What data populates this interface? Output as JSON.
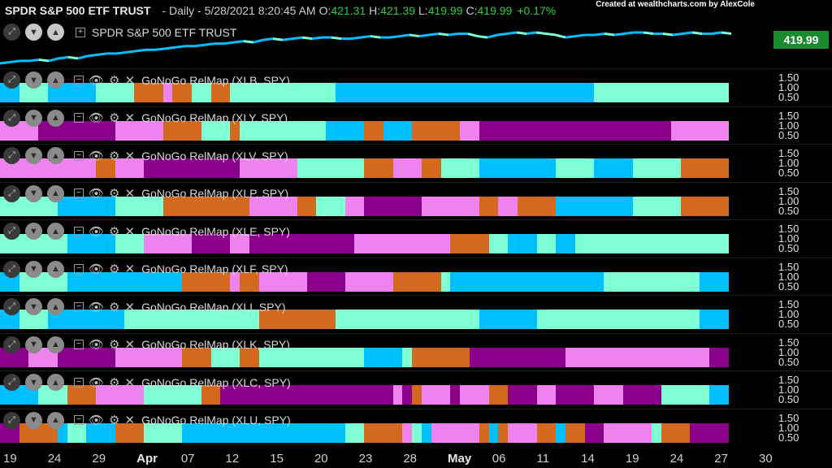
{
  "header": {
    "symbol": "SPDR S&P 500 ETF TRUST",
    "interval": "- Daily - 5/28/2021 8:20:45 AM",
    "o_label": "O:",
    "open": "421.31",
    "h_label": "H:",
    "high": "421.39",
    "l_label": "L:",
    "low": "419.99",
    "c_label": "C:",
    "close": "419.99",
    "change": "+0.17%",
    "credit": "Created at wealthcharts.com by AlexCole"
  },
  "price_pane": {
    "title": "SPDR S&P 500 ETF TRUST",
    "price_box": "419.99"
  },
  "colors": {
    "cyan": "#00bfff",
    "aqua": "#7fffd4",
    "orange": "#d2691e",
    "pink": "#ee82ee",
    "purple": "#8b008b"
  },
  "y_ticks": [
    "1.50",
    "1.00",
    "0.50"
  ],
  "panes": [
    {
      "title": "GoNoGo RelMap (XLB, SPY)",
      "segments": [
        "C",
        "C",
        "A",
        "A",
        "A",
        "C",
        "C",
        "C",
        "C",
        "C",
        "A",
        "A",
        "A",
        "A",
        "O",
        "O",
        "O",
        "P",
        "O",
        "O",
        "A",
        "A",
        "O",
        "O",
        "A",
        "A",
        "A",
        "A",
        "A",
        "A",
        "A",
        "A",
        "A",
        "A",
        "A",
        "C",
        "C",
        "C",
        "C",
        "C",
        "C",
        "C",
        "C",
        "C",
        "C",
        "C",
        "C",
        "C",
        "C",
        "C",
        "C",
        "C",
        "C",
        "C",
        "C",
        "C",
        "C",
        "C",
        "C",
        "C",
        "C",
        "C",
        "A",
        "A",
        "A",
        "A",
        "A",
        "A",
        "A",
        "A",
        "A",
        "A",
        "A",
        "A",
        "A",
        "A"
      ]
    },
    {
      "title": "GoNoGo RelMap (XLY, SPY)",
      "segments": [
        "P",
        "P",
        "P",
        "P",
        "U",
        "U",
        "U",
        "U",
        "U",
        "U",
        "U",
        "U",
        "P",
        "P",
        "P",
        "P",
        "P",
        "O",
        "O",
        "O",
        "O",
        "A",
        "A",
        "A",
        "O",
        "A",
        "A",
        "A",
        "A",
        "A",
        "A",
        "A",
        "A",
        "A",
        "C",
        "C",
        "C",
        "C",
        "O",
        "O",
        "C",
        "C",
        "C",
        "O",
        "O",
        "O",
        "O",
        "O",
        "P",
        "P",
        "U",
        "U",
        "U",
        "U",
        "U",
        "U",
        "U",
        "U",
        "U",
        "U",
        "U",
        "U",
        "U",
        "U",
        "U",
        "U",
        "U",
        "U",
        "U",
        "U",
        "P",
        "P",
        "P",
        "P",
        "P",
        "P"
      ]
    },
    {
      "title": "GoNoGo RelMap (XLV, SPY)",
      "segments": [
        "P",
        "P",
        "P",
        "P",
        "P",
        "P",
        "P",
        "P",
        "P",
        "P",
        "O",
        "O",
        "P",
        "P",
        "P",
        "U",
        "U",
        "U",
        "U",
        "U",
        "U",
        "U",
        "U",
        "U",
        "U",
        "P",
        "P",
        "P",
        "P",
        "P",
        "P",
        "A",
        "A",
        "A",
        "A",
        "A",
        "A",
        "A",
        "O",
        "O",
        "O",
        "P",
        "P",
        "P",
        "O",
        "O",
        "A",
        "A",
        "A",
        "A",
        "C",
        "C",
        "C",
        "C",
        "C",
        "C",
        "C",
        "C",
        "A",
        "A",
        "A",
        "A",
        "C",
        "C",
        "C",
        "C",
        "A",
        "A",
        "A",
        "A",
        "A",
        "O",
        "O",
        "O",
        "O",
        "O"
      ]
    },
    {
      "title": "GoNoGo RelMap (XLP, SPY)",
      "segments": [
        "A",
        "A",
        "A",
        "A",
        "A",
        "A",
        "C",
        "C",
        "C",
        "C",
        "C",
        "C",
        "A",
        "A",
        "A",
        "A",
        "A",
        "O",
        "O",
        "O",
        "O",
        "O",
        "O",
        "O",
        "O",
        "O",
        "P",
        "P",
        "P",
        "P",
        "P",
        "O",
        "O",
        "A",
        "A",
        "A",
        "P",
        "P",
        "U",
        "U",
        "U",
        "U",
        "U",
        "U",
        "P",
        "P",
        "P",
        "P",
        "P",
        "P",
        "O",
        "O",
        "P",
        "P",
        "O",
        "O",
        "O",
        "O",
        "C",
        "C",
        "C",
        "C",
        "C",
        "C",
        "C",
        "C",
        "A",
        "A",
        "A",
        "A",
        "A",
        "O",
        "O",
        "O",
        "O",
        "O"
      ]
    },
    {
      "title": "GoNoGo RelMap (XLE, SPY)",
      "segments": [
        "A",
        "A",
        "A",
        "A",
        "A",
        "A",
        "A",
        "C",
        "C",
        "C",
        "C",
        "C",
        "A",
        "A",
        "A",
        "P",
        "P",
        "P",
        "P",
        "P",
        "U",
        "U",
        "U",
        "U",
        "P",
        "P",
        "U",
        "U",
        "U",
        "U",
        "U",
        "U",
        "U",
        "U",
        "U",
        "U",
        "U",
        "P",
        "P",
        "P",
        "P",
        "P",
        "P",
        "P",
        "P",
        "P",
        "P",
        "O",
        "O",
        "O",
        "O",
        "A",
        "A",
        "C",
        "C",
        "C",
        "A",
        "A",
        "C",
        "C",
        "A",
        "A",
        "A",
        "A",
        "A",
        "A",
        "A",
        "A",
        "A",
        "A",
        "A",
        "A",
        "A",
        "A",
        "A",
        "A"
      ]
    },
    {
      "title": "GoNoGo RelMap (XLF, SPY)",
      "segments": [
        "C",
        "C",
        "A",
        "A",
        "A",
        "A",
        "A",
        "C",
        "C",
        "C",
        "C",
        "C",
        "C",
        "C",
        "C",
        "C",
        "C",
        "C",
        "C",
        "O",
        "O",
        "O",
        "O",
        "O",
        "P",
        "O",
        "O",
        "P",
        "P",
        "P",
        "P",
        "P",
        "U",
        "U",
        "U",
        "U",
        "P",
        "P",
        "P",
        "P",
        "P",
        "O",
        "O",
        "O",
        "O",
        "O",
        "A",
        "C",
        "C",
        "C",
        "C",
        "C",
        "C",
        "C",
        "C",
        "C",
        "C",
        "C",
        "C",
        "C",
        "C",
        "C",
        "C",
        "A",
        "A",
        "A",
        "A",
        "A",
        "A",
        "A",
        "A",
        "A",
        "A",
        "C",
        "C",
        "C"
      ]
    },
    {
      "title": "GoNoGo RelMap (XLI, SPY)",
      "segments": [
        "C",
        "C",
        "A",
        "A",
        "A",
        "C",
        "C",
        "C",
        "C",
        "C",
        "C",
        "C",
        "C",
        "A",
        "A",
        "A",
        "A",
        "A",
        "A",
        "A",
        "A",
        "A",
        "A",
        "A",
        "A",
        "A",
        "A",
        "O",
        "O",
        "O",
        "O",
        "O",
        "O",
        "O",
        "O",
        "A",
        "A",
        "A",
        "A",
        "A",
        "A",
        "A",
        "A",
        "A",
        "A",
        "A",
        "A",
        "A",
        "A",
        "A",
        "C",
        "C",
        "C",
        "C",
        "C",
        "C",
        "A",
        "A",
        "A",
        "A",
        "A",
        "A",
        "A",
        "A",
        "A",
        "A",
        "A",
        "A",
        "A",
        "A",
        "A",
        "A",
        "A",
        "C",
        "C",
        "C"
      ]
    },
    {
      "title": "GoNoGo RelMap (XLK, SPY)",
      "segments": [
        "U",
        "U",
        "U",
        "P",
        "P",
        "P",
        "U",
        "U",
        "U",
        "U",
        "U",
        "U",
        "P",
        "P",
        "P",
        "P",
        "P",
        "P",
        "P",
        "O",
        "O",
        "O",
        "A",
        "A",
        "A",
        "O",
        "O",
        "A",
        "A",
        "A",
        "A",
        "A",
        "A",
        "A",
        "A",
        "A",
        "A",
        "A",
        "C",
        "C",
        "C",
        "C",
        "A",
        "O",
        "O",
        "O",
        "O",
        "O",
        "O",
        "U",
        "U",
        "U",
        "U",
        "U",
        "U",
        "U",
        "U",
        "U",
        "U",
        "P",
        "P",
        "P",
        "P",
        "P",
        "P",
        "P",
        "P",
        "P",
        "P",
        "P",
        "P",
        "P",
        "P",
        "P",
        "U",
        "U"
      ]
    },
    {
      "title": "GoNoGo RelMap (XLC, SPY)",
      "segments": [
        "C",
        "C",
        "C",
        "C",
        "A",
        "A",
        "A",
        "O",
        "O",
        "O",
        "P",
        "P",
        "P",
        "P",
        "P",
        "A",
        "A",
        "A",
        "A",
        "A",
        "A",
        "O",
        "O",
        "U",
        "U",
        "U",
        "U",
        "U",
        "U",
        "U",
        "U",
        "U",
        "U",
        "U",
        "U",
        "U",
        "U",
        "U",
        "U",
        "U",
        "U",
        "P",
        "U",
        "O",
        "P",
        "P",
        "P",
        "U",
        "P",
        "P",
        "P",
        "O",
        "O",
        "U",
        "U",
        "U",
        "P",
        "P",
        "U",
        "U",
        "U",
        "U",
        "P",
        "P",
        "P",
        "U",
        "U",
        "U",
        "U",
        "A",
        "A",
        "A",
        "A",
        "A",
        "C",
        "C"
      ]
    },
    {
      "title": "GoNoGo RelMap (XLU, SPY)",
      "segments": [
        "U",
        "U",
        "O",
        "O",
        "O",
        "O",
        "C",
        "A",
        "A",
        "C",
        "C",
        "C",
        "O",
        "O",
        "O",
        "A",
        "A",
        "A",
        "A",
        "C",
        "C",
        "C",
        "C",
        "C",
        "C",
        "C",
        "C",
        "C",
        "C",
        "C",
        "C",
        "C",
        "C",
        "C",
        "C",
        "C",
        "A",
        "A",
        "O",
        "O",
        "O",
        "O",
        "P",
        "A",
        "C",
        "P",
        "P",
        "P",
        "P",
        "P",
        "O",
        "C",
        "O",
        "P",
        "P",
        "P",
        "O",
        "O",
        "C",
        "O",
        "O",
        "U",
        "U",
        "P",
        "P",
        "P",
        "P",
        "P",
        "A",
        "O",
        "O",
        "O",
        "U",
        "U",
        "U",
        "U"
      ]
    }
  ],
  "price_series": [
    396,
    397,
    398,
    398,
    399,
    398,
    400,
    401,
    400,
    402,
    403,
    404,
    404,
    405,
    406,
    407,
    407,
    408,
    409,
    410,
    410,
    411,
    412,
    412,
    413,
    414,
    413,
    415,
    416,
    415,
    416,
    417,
    416,
    417,
    417,
    416,
    416,
    417,
    418,
    417,
    417,
    418,
    419,
    418,
    419,
    420,
    419,
    420,
    420,
    418,
    417,
    419,
    420,
    421,
    420,
    421,
    420,
    419,
    417,
    418,
    419,
    419,
    420,
    419,
    420,
    421,
    421,
    420,
    420,
    419,
    420,
    421,
    420,
    420,
    421,
    420
  ],
  "x_axis": [
    {
      "label": "19",
      "bold": false
    },
    {
      "label": "24",
      "bold": false
    },
    {
      "label": "29",
      "bold": false
    },
    {
      "label": "Apr",
      "bold": true
    },
    {
      "label": "07",
      "bold": false
    },
    {
      "label": "12",
      "bold": false
    },
    {
      "label": "15",
      "bold": false
    },
    {
      "label": "20",
      "bold": false
    },
    {
      "label": "23",
      "bold": false
    },
    {
      "label": "28",
      "bold": false
    },
    {
      "label": "May",
      "bold": true
    },
    {
      "label": "06",
      "bold": false
    },
    {
      "label": "11",
      "bold": false
    },
    {
      "label": "14",
      "bold": false
    },
    {
      "label": "19",
      "bold": false
    },
    {
      "label": "24",
      "bold": false
    },
    {
      "label": "27",
      "bold": false
    },
    {
      "label": "30",
      "bold": false
    }
  ]
}
